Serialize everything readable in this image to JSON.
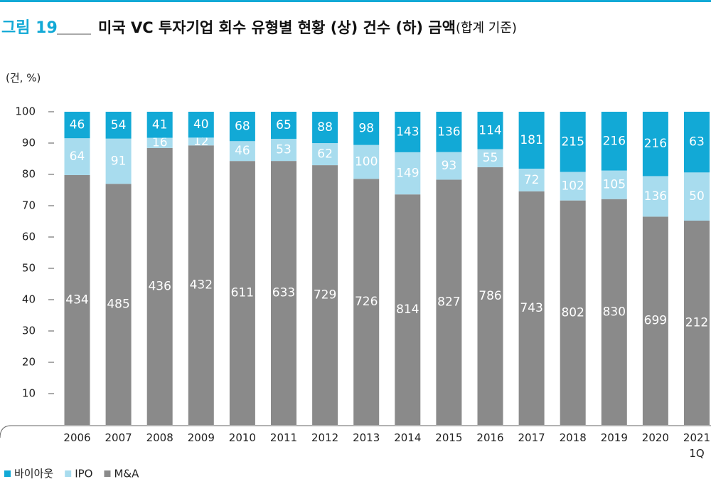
{
  "chart_data": {
    "type": "bar",
    "stacked": "percent",
    "figure_label": "그림 19",
    "title": "미국 VC 투자기업 회수 유형별 현황 (상) 건수 (하) 금액",
    "subtitle": "(합계 기준)",
    "y_unit": "(건, %)",
    "categories": [
      "2006",
      "2007",
      "2008",
      "2009",
      "2010",
      "2011",
      "2012",
      "2013",
      "2014",
      "2015",
      "2016",
      "2017",
      "2018",
      "2019",
      "2020",
      "2021\n1Q"
    ],
    "series": [
      {
        "name": "M&A",
        "color": "#8a8a8a",
        "values": [
          434,
          485,
          436,
          432,
          611,
          633,
          729,
          726,
          814,
          827,
          786,
          743,
          802,
          830,
          699,
          212
        ]
      },
      {
        "name": "IPO",
        "color": "#a8dcee",
        "values": [
          64,
          91,
          16,
          12,
          46,
          53,
          62,
          100,
          149,
          93,
          55,
          72,
          102,
          105,
          136,
          50
        ]
      },
      {
        "name": "바이아웃",
        "color": "#12a9d6",
        "values": [
          46,
          54,
          41,
          40,
          68,
          65,
          88,
          98,
          143,
          136,
          114,
          181,
          215,
          216,
          216,
          63
        ]
      }
    ],
    "legend_order": [
      2,
      1,
      0
    ],
    "ylim": [
      0,
      100
    ],
    "yticks": [
      10,
      20,
      30,
      40,
      50,
      60,
      70,
      80,
      90,
      100
    ]
  }
}
